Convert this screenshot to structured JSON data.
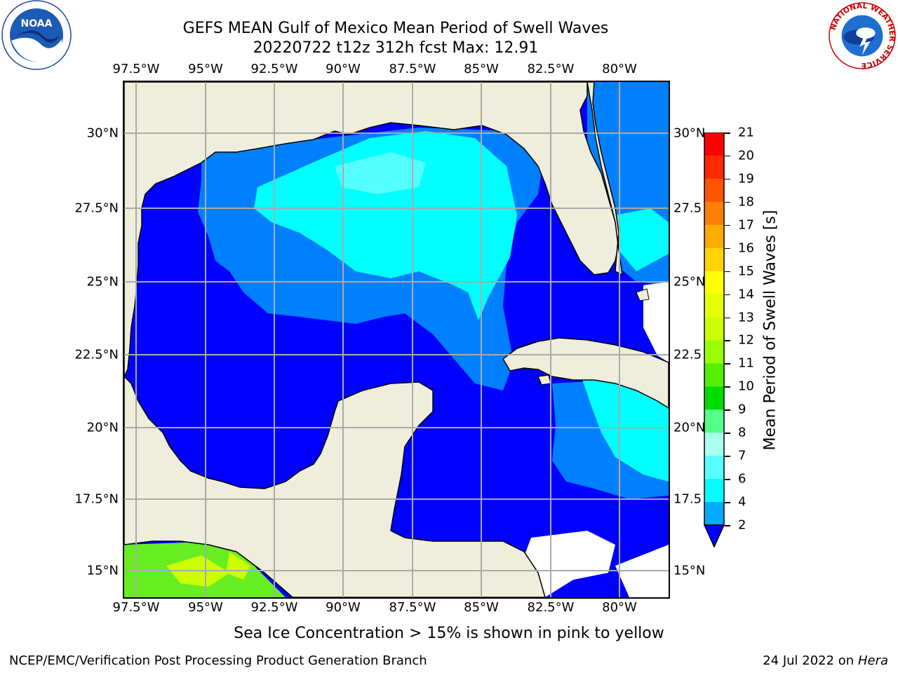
{
  "header": {
    "title_line1": "GEFS MEAN Gulf of Mexico Mean Period of Swell Waves",
    "title_line2": "20220722 t12z 312h fcst   Max: 12.91"
  },
  "axes": {
    "lon_labels": [
      "97.5°W",
      "95°W",
      "92.5°W",
      "90°W",
      "87.5°W",
      "85°W",
      "82.5°W",
      "80°W"
    ],
    "lat_labels_left": [
      "30°N",
      "27.5°N",
      "25°N",
      "22.5°N",
      "20°N",
      "17.5°N",
      "15°N"
    ],
    "lat_labels_right": [
      "30°N",
      "27.5",
      "25°N",
      "22.5",
      "20°N",
      "17.5",
      "15°N"
    ]
  },
  "colorbar": {
    "label": "Mean Period of Swell Waves [s]",
    "ticks": [
      "21",
      "20",
      "19",
      "18",
      "17",
      "16",
      "15",
      "14",
      "13",
      "12",
      "11",
      "10",
      "9",
      "8",
      "7",
      "6",
      "4",
      "2"
    ],
    "colors": [
      "#ff0000",
      "#ff2a00",
      "#ff5500",
      "#ff8000",
      "#ffaa00",
      "#ffd400",
      "#ffff00",
      "#e6ff00",
      "#ccff00",
      "#99ff00",
      "#55ee00",
      "#00dd00",
      "#55ff88",
      "#aaffee",
      "#55ffff",
      "#00ffff",
      "#00aaff",
      "#0055ff"
    ]
  },
  "map_data": {
    "region": "Gulf of Mexico",
    "lon_range": [
      -98,
      -78.2
    ],
    "lat_range": [
      14,
      31.8
    ],
    "land_color": "#efeedc",
    "grid_color": "#aaaaaa",
    "field_colors": {
      "lt4": "#0000ff",
      "4to6": "#0080ff",
      "6to8": "#00ffff",
      "8to9": "#55ffff",
      "green": "#66ee22",
      "yellowgreen": "#ccff00"
    }
  },
  "note": "Sea Ice Concentration > 15% is shown in pink to yellow",
  "footer": {
    "left": "NCEP/EMC/Verification Post Processing Product Generation Branch",
    "right_prefix": "24 Jul 2022 on ",
    "right_host": "Hera"
  },
  "logos": {
    "noaa": "NOAA",
    "nws_ring": "NATIONAL WEATHER SERVICE"
  }
}
